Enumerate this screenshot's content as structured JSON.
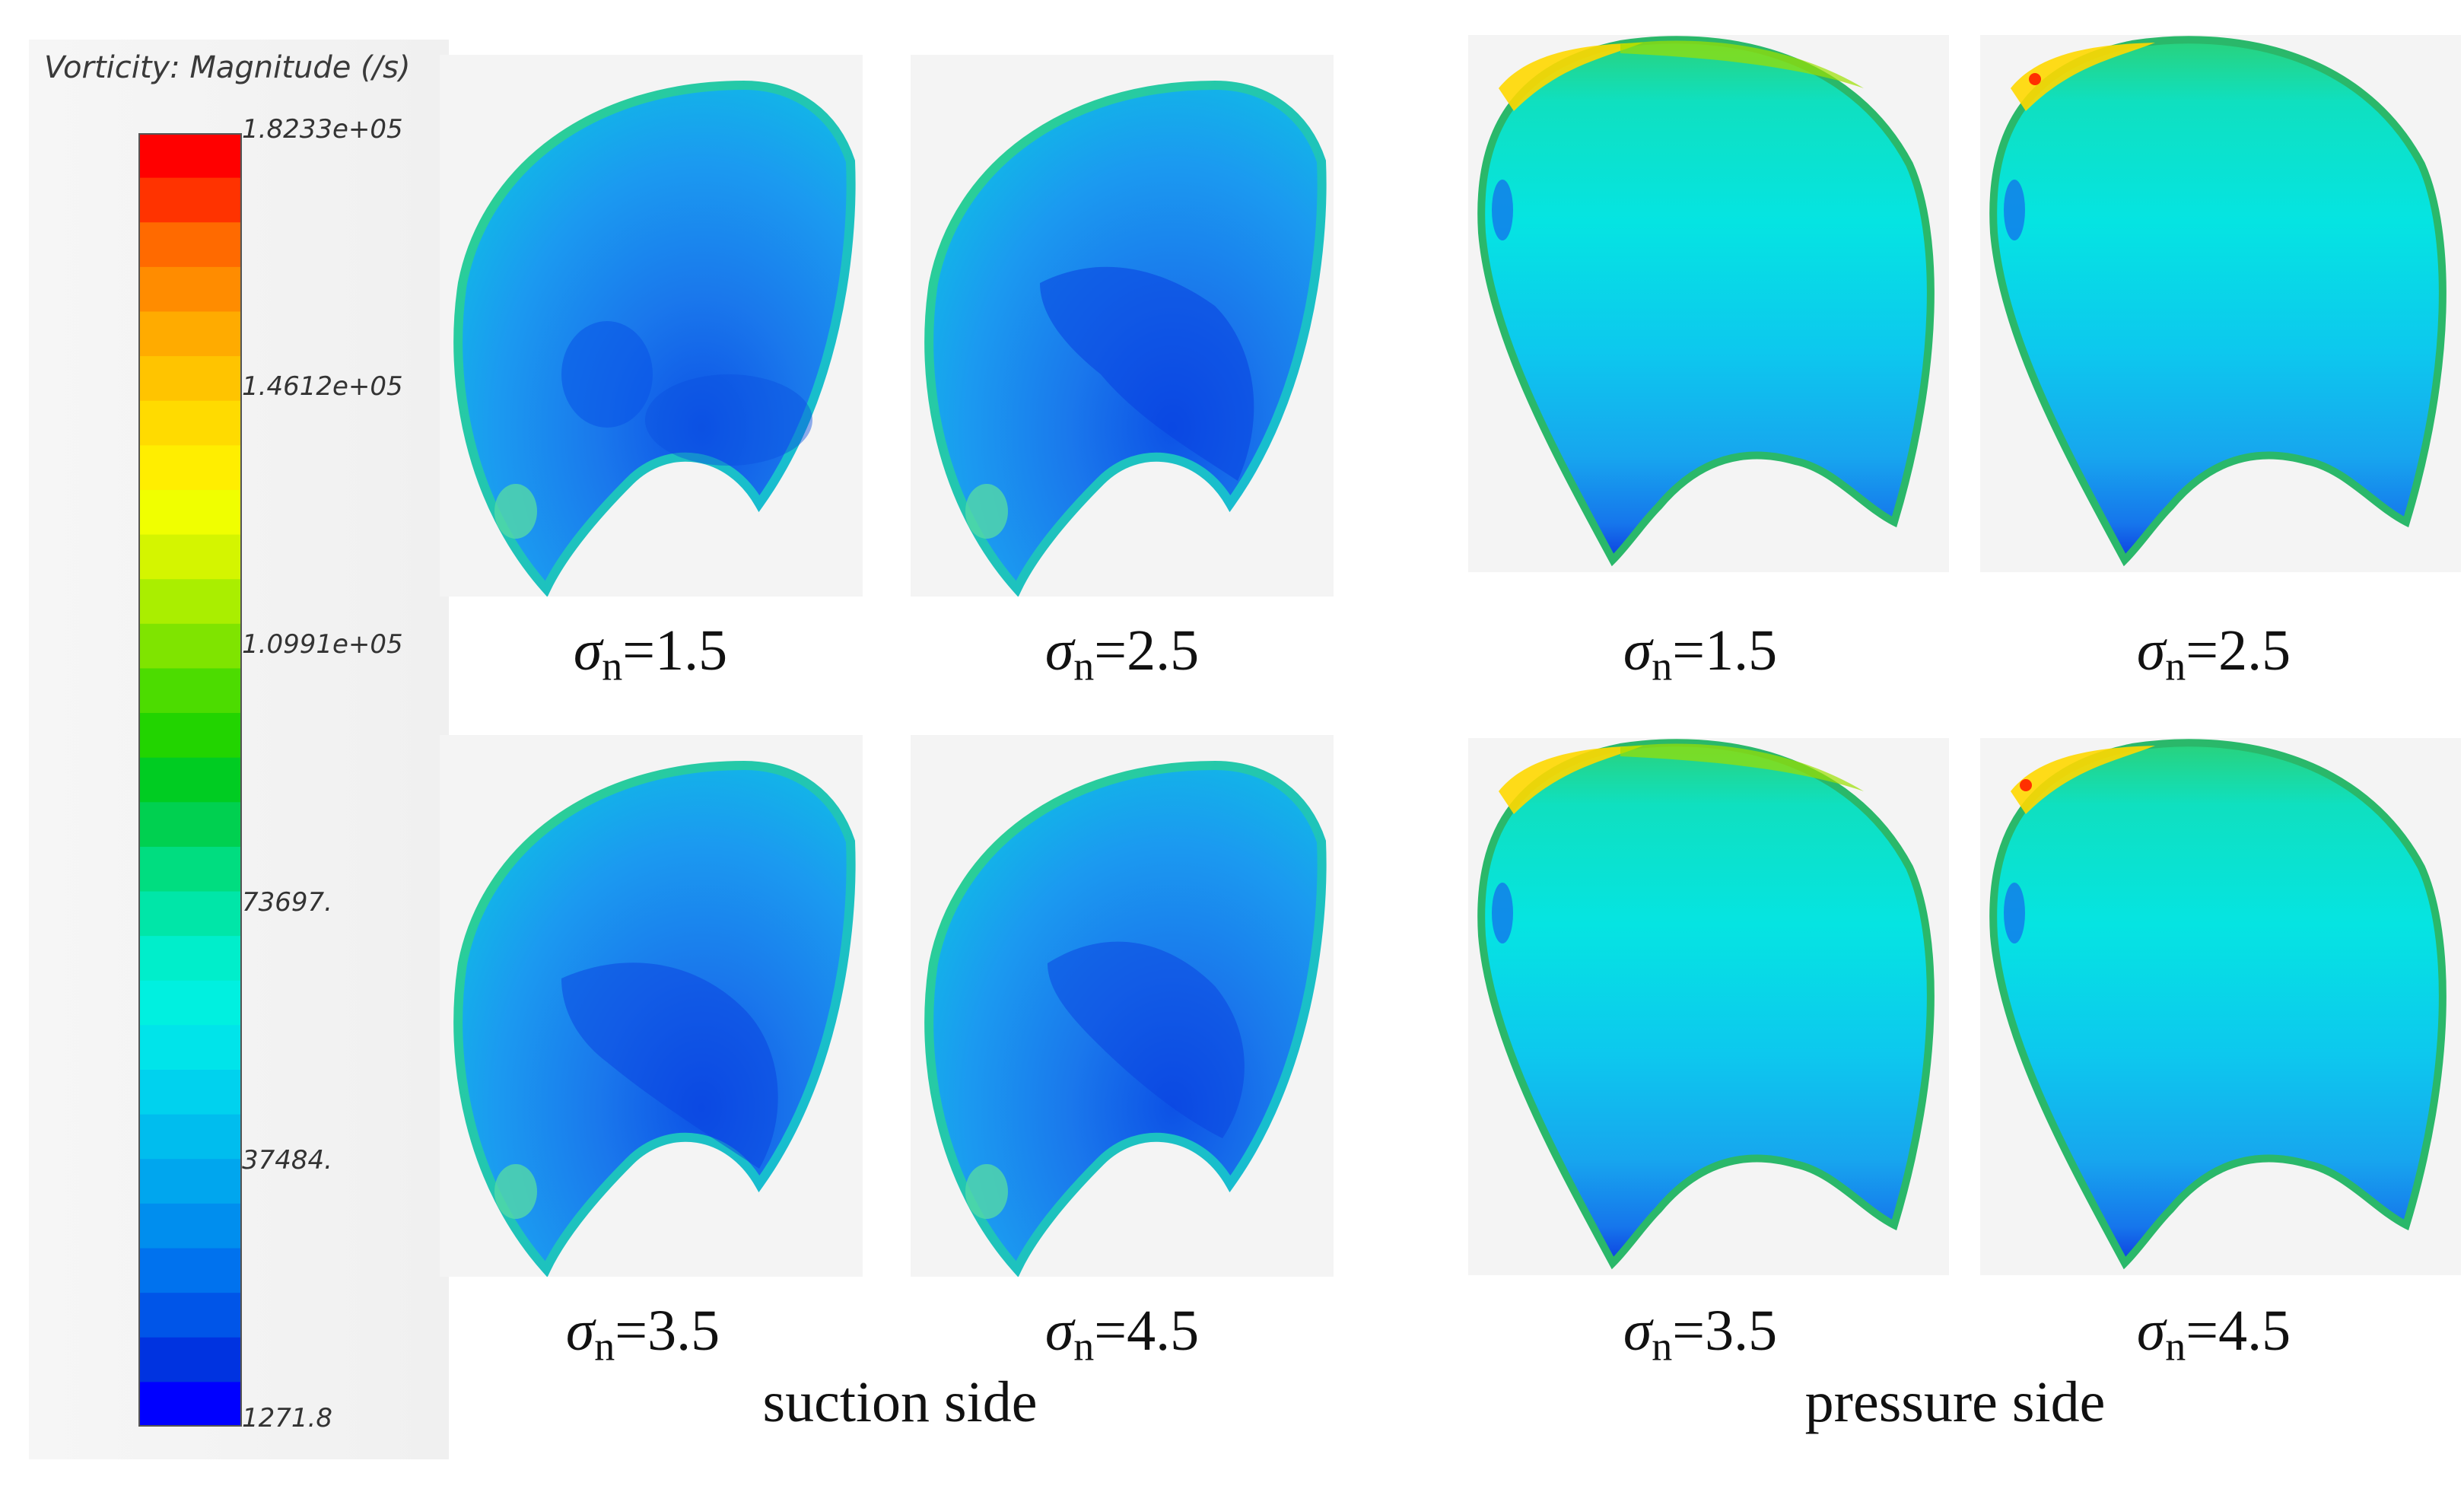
{
  "colorbar": {
    "title": "Vorticity: Magnitude (/s)",
    "ticks": [
      "1.8233e+05",
      "1.4612e+05",
      "1.0991e+05",
      "73697.",
      "37484.",
      "1271.8"
    ],
    "colors": [
      "#ff0000",
      "#ff3300",
      "#ff6a00",
      "#ff8c00",
      "#ffab00",
      "#ffc400",
      "#ffdb00",
      "#ffee00",
      "#f0ff00",
      "#d4f500",
      "#aaee00",
      "#7fe400",
      "#4cdc00",
      "#22d400",
      "#00cc22",
      "#00d050",
      "#00dd80",
      "#00e6a8",
      "#00eecb",
      "#00f0e0",
      "#00e4ea",
      "#00d2ee",
      "#00bdee",
      "#00a6ee",
      "#008eee",
      "#0072ee",
      "#0055e8",
      "#0033e0",
      "#0000ff"
    ]
  },
  "labels": {
    "sigma": "σ",
    "sub": "n",
    "values": [
      "=1.5",
      "=2.5",
      "=3.5",
      "=4.5"
    ]
  },
  "groups": {
    "suction": "suction side",
    "pressure": "pressure side"
  }
}
